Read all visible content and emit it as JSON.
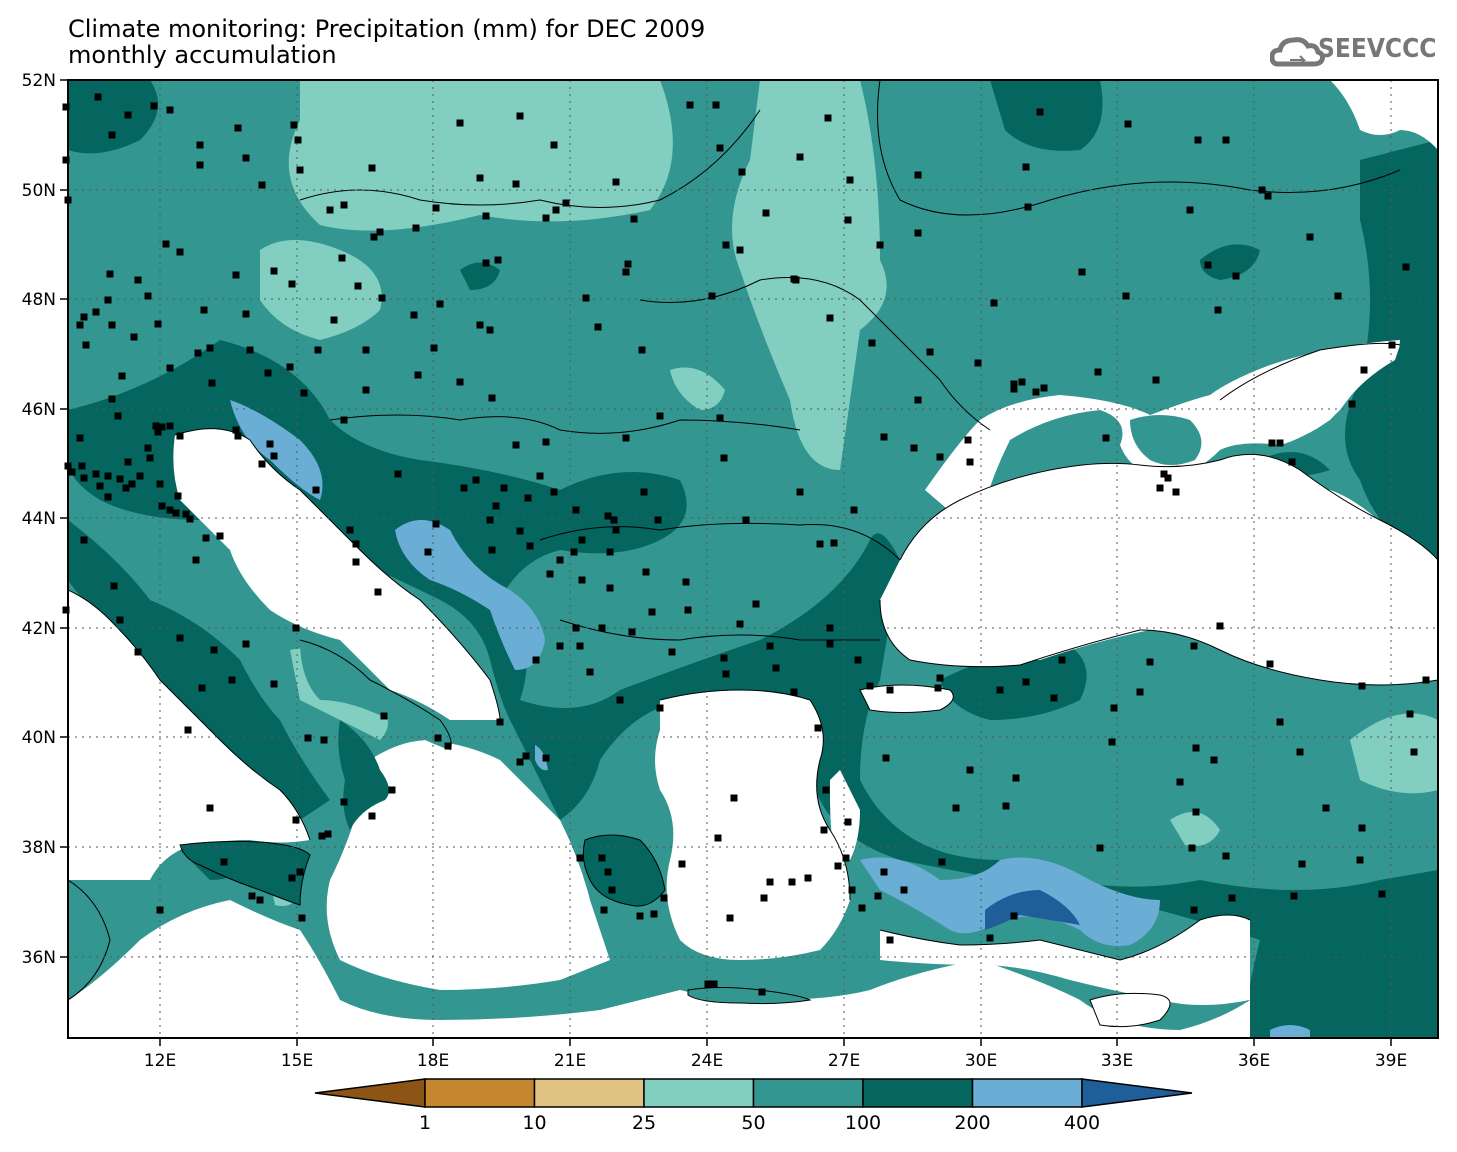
{
  "title": {
    "line1": "Climate monitoring: Precipitation (mm) for DEC 2009",
    "line2": "monthly accumulation"
  },
  "logo": {
    "text": "SEEVCCC",
    "icon": "cloud-icon"
  },
  "axes": {
    "lat_labels": [
      "52N",
      "50N",
      "48N",
      "46N",
      "44N",
      "42N",
      "40N",
      "38N",
      "36N"
    ],
    "lon_labels": [
      "12E",
      "15E",
      "18E",
      "21E",
      "24E",
      "27E",
      "30E",
      "33E",
      "36E",
      "39E"
    ]
  },
  "legend": {
    "boundaries": [
      "1",
      "10",
      "25",
      "50",
      "100",
      "200",
      "400"
    ],
    "colors": [
      "#8c5516",
      "#c4862f",
      "#e0c383",
      "#82cfc2",
      "#349690",
      "#04665e",
      "#6aaed6",
      "#1f5e99"
    ]
  },
  "colors": {
    "land_missing": "#ffffff",
    "class_25_50": "#82cfc2",
    "class_50_100": "#349690",
    "class_100_200": "#04665e",
    "class_200_400": "#6aaed6",
    "class_400_plus": "#1f5e99",
    "station": "#000000"
  }
}
